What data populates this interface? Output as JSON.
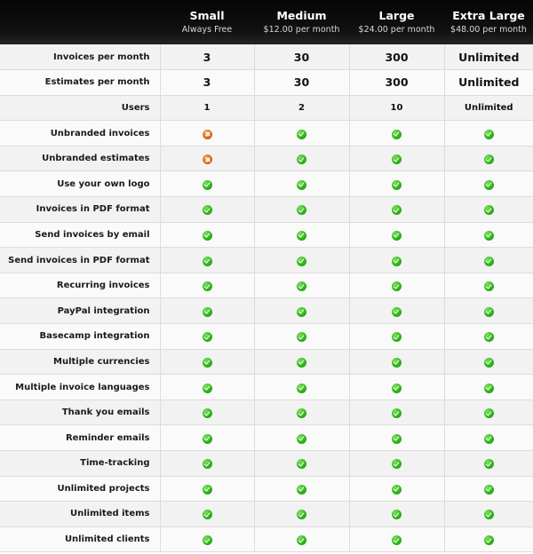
{
  "plans": [
    {
      "name": "Small",
      "price": "Always Free"
    },
    {
      "name": "Medium",
      "price": "$12.00 per month"
    },
    {
      "name": "Large",
      "price": "$24.00 per month"
    },
    {
      "name": "Extra Large",
      "price": "$48.00 per month"
    }
  ],
  "rows": [
    {
      "feature": "Invoices per month",
      "kind": "big",
      "values": [
        "3",
        "30",
        "300",
        "Unlimited"
      ]
    },
    {
      "feature": "Estimates per month",
      "kind": "big",
      "values": [
        "3",
        "30",
        "300",
        "Unlimited"
      ]
    },
    {
      "feature": "Users",
      "kind": "small",
      "values": [
        "1",
        "2",
        "10",
        "Unlimited"
      ]
    },
    {
      "feature": "Unbranded invoices",
      "kind": "icon",
      "values": [
        "cross-icon",
        "check-icon",
        "check-icon",
        "check-icon"
      ]
    },
    {
      "feature": "Unbranded estimates",
      "kind": "icon",
      "values": [
        "cross-icon",
        "check-icon",
        "check-icon",
        "check-icon"
      ]
    },
    {
      "feature": "Use your own logo",
      "kind": "icon",
      "values": [
        "check-icon",
        "check-icon",
        "check-icon",
        "check-icon"
      ]
    },
    {
      "feature": "Invoices in PDF format",
      "kind": "icon",
      "values": [
        "check-icon",
        "check-icon",
        "check-icon",
        "check-icon"
      ]
    },
    {
      "feature": "Send invoices by email",
      "kind": "icon",
      "values": [
        "check-icon",
        "check-icon",
        "check-icon",
        "check-icon"
      ]
    },
    {
      "feature": "Send invoices in PDF format",
      "kind": "icon",
      "values": [
        "check-icon",
        "check-icon",
        "check-icon",
        "check-icon"
      ]
    },
    {
      "feature": "Recurring invoices",
      "kind": "icon",
      "values": [
        "check-icon",
        "check-icon",
        "check-icon",
        "check-icon"
      ]
    },
    {
      "feature": "PayPal integration",
      "kind": "icon",
      "values": [
        "check-icon",
        "check-icon",
        "check-icon",
        "check-icon"
      ]
    },
    {
      "feature": "Basecamp integration",
      "kind": "icon",
      "values": [
        "check-icon",
        "check-icon",
        "check-icon",
        "check-icon"
      ]
    },
    {
      "feature": "Multiple currencies",
      "kind": "icon",
      "values": [
        "check-icon",
        "check-icon",
        "check-icon",
        "check-icon"
      ]
    },
    {
      "feature": "Multiple invoice languages",
      "kind": "icon",
      "values": [
        "check-icon",
        "check-icon",
        "check-icon",
        "check-icon"
      ]
    },
    {
      "feature": "Thank you emails",
      "kind": "icon",
      "values": [
        "check-icon",
        "check-icon",
        "check-icon",
        "check-icon"
      ]
    },
    {
      "feature": "Reminder emails",
      "kind": "icon",
      "values": [
        "check-icon",
        "check-icon",
        "check-icon",
        "check-icon"
      ]
    },
    {
      "feature": "Time-tracking",
      "kind": "icon",
      "values": [
        "check-icon",
        "check-icon",
        "check-icon",
        "check-icon"
      ]
    },
    {
      "feature": "Unlimited projects",
      "kind": "icon",
      "values": [
        "check-icon",
        "check-icon",
        "check-icon",
        "check-icon"
      ]
    },
    {
      "feature": "Unlimited items",
      "kind": "icon",
      "values": [
        "check-icon",
        "check-icon",
        "check-icon",
        "check-icon"
      ]
    },
    {
      "feature": "Unlimited clients",
      "kind": "icon",
      "values": [
        "check-icon",
        "check-icon",
        "check-icon",
        "check-icon"
      ]
    }
  ],
  "colors": {
    "header_bg": "#111111",
    "check": "#2fb51a",
    "cross": "#e46a1e",
    "row_odd": "#f2f2f2",
    "row_even": "#fafafa"
  }
}
